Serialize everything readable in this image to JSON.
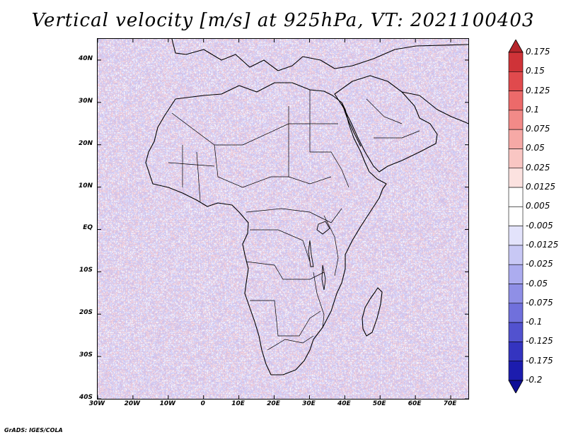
{
  "title": "Vertical velocity [m/s] at 925hPa, VT: 2021100403",
  "credit": "GrADS: IGES/COLA",
  "map": {
    "lon_range": [
      -30,
      75
    ],
    "lat_range": [
      -40,
      45
    ],
    "lat_labels": [
      "40N",
      "30N",
      "20N",
      "10N",
      "EQ",
      "10S",
      "20S",
      "30S",
      "40S"
    ],
    "lat_values": [
      40,
      30,
      20,
      10,
      0,
      -10,
      -20,
      -30,
      -40
    ],
    "lon_labels": [
      "30W",
      "20W",
      "10W",
      "0",
      "10E",
      "20E",
      "30E",
      "40E",
      "50E",
      "60E",
      "70E"
    ],
    "lon_values": [
      -30,
      -20,
      -10,
      0,
      10,
      20,
      30,
      40,
      50,
      60,
      70
    ]
  },
  "colorbar": {
    "labels": [
      "0.175",
      "0.15",
      "0.125",
      "0.1",
      "0.075",
      "0.05",
      "0.025",
      "0.0125",
      "0.005",
      "-0.005",
      "-0.0125",
      "-0.025",
      "-0.05",
      "-0.075",
      "-0.1",
      "-0.125",
      "-0.175",
      "-0.2"
    ],
    "colors": [
      "#b5252b",
      "#cf3338",
      "#e04a4d",
      "#ec6a6a",
      "#f28a88",
      "#f6a9a6",
      "#f9c6c3",
      "#fce2e0",
      "#ffffff",
      "#ffffff",
      "#e3e3fb",
      "#c8c8f5",
      "#acacef",
      "#8f8fe6",
      "#7070dc",
      "#5252cf",
      "#3434c0",
      "#1c1cae",
      "#0f0f96"
    ]
  }
}
